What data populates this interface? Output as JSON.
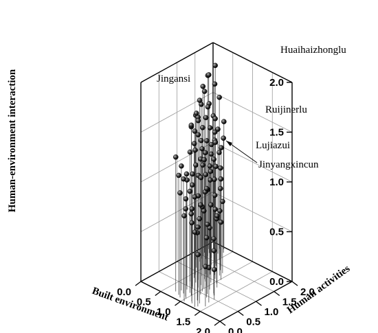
{
  "chart_data": {
    "type": "scatter3d",
    "title": "",
    "xlabel": "Built environment",
    "ylabel": "Human activities",
    "zlabel": "Human-environment interaction",
    "xlim": [
      0,
      2
    ],
    "ylim": [
      0,
      2
    ],
    "zlim": [
      0,
      2
    ],
    "x_ticks": [
      "0.0",
      "0.5",
      "1.0",
      "1.5",
      "2.0"
    ],
    "y_ticks": [
      "0.0",
      "0.5",
      "1.0",
      "1.5",
      "2.0"
    ],
    "z_ticks": [
      "0.0",
      "0.5",
      "1.0",
      "1.5",
      "2.0"
    ],
    "grid": true,
    "marker": "sphere with drop line",
    "annotations": [
      {
        "text": "Huaihaizhonglu",
        "x": 0.15,
        "y": 1.92,
        "z": 1.6
      },
      {
        "text": "Jingansi",
        "x": 0.6,
        "y": 0.93,
        "z": 1.55
      },
      {
        "text": "Ruijinerlu",
        "x": 0.37,
        "y": 1.55,
        "z": 1.14
      },
      {
        "text": "Lujiazui",
        "x": 0.46,
        "y": 1.21,
        "z": 1.02
      },
      {
        "text": "Jinyangxincun",
        "x": 0.46,
        "y": 1.21,
        "z": 1.02
      }
    ],
    "points": [
      {
        "x": 1.15,
        "y": 0.15,
        "z": 0.79
      },
      {
        "x": 1.05,
        "y": 0.05,
        "z": 0.86
      },
      {
        "x": 0.95,
        "y": 0.2,
        "z": 0.88
      },
      {
        "x": 1.0,
        "y": 0.3,
        "z": 0.82
      },
      {
        "x": 1.12,
        "y": 0.35,
        "z": 0.7
      },
      {
        "x": 1.2,
        "y": 0.25,
        "z": 0.68
      },
      {
        "x": 0.9,
        "y": 0.1,
        "z": 1.05
      },
      {
        "x": 0.85,
        "y": 0.25,
        "z": 1.15
      },
      {
        "x": 0.8,
        "y": 0.4,
        "z": 1.1
      },
      {
        "x": 0.95,
        "y": 0.45,
        "z": 0.95
      },
      {
        "x": 1.05,
        "y": 0.55,
        "z": 0.85
      },
      {
        "x": 1.25,
        "y": 0.45,
        "z": 0.6
      },
      {
        "x": 1.3,
        "y": 0.6,
        "z": 0.45
      },
      {
        "x": 1.1,
        "y": 0.7,
        "z": 0.62
      },
      {
        "x": 1.0,
        "y": 0.65,
        "z": 0.78
      },
      {
        "x": 0.9,
        "y": 0.6,
        "z": 0.92
      },
      {
        "x": 0.8,
        "y": 0.55,
        "z": 1.02
      },
      {
        "x": 0.7,
        "y": 0.5,
        "z": 1.12
      },
      {
        "x": 0.75,
        "y": 0.7,
        "z": 1.18
      },
      {
        "x": 0.65,
        "y": 0.65,
        "z": 1.3
      },
      {
        "x": 0.72,
        "y": 0.8,
        "z": 1.05
      },
      {
        "x": 0.85,
        "y": 0.85,
        "z": 0.9
      },
      {
        "x": 0.95,
        "y": 0.9,
        "z": 0.78
      },
      {
        "x": 1.05,
        "y": 0.95,
        "z": 0.65
      },
      {
        "x": 1.15,
        "y": 0.85,
        "z": 0.72
      },
      {
        "x": 0.62,
        "y": 0.8,
        "z": 1.35
      },
      {
        "x": 0.55,
        "y": 0.9,
        "z": 1.25
      },
      {
        "x": 0.6,
        "y": 1.0,
        "z": 1.15
      },
      {
        "x": 0.68,
        "y": 1.05,
        "z": 1.0
      },
      {
        "x": 0.78,
        "y": 1.0,
        "z": 0.88
      },
      {
        "x": 0.5,
        "y": 0.85,
        "z": 1.5
      },
      {
        "x": 0.45,
        "y": 1.0,
        "z": 1.4
      },
      {
        "x": 0.52,
        "y": 1.1,
        "z": 1.3
      },
      {
        "x": 0.58,
        "y": 1.15,
        "z": 1.18
      },
      {
        "x": 0.65,
        "y": 1.2,
        "z": 1.05
      },
      {
        "x": 0.72,
        "y": 1.25,
        "z": 0.92
      },
      {
        "x": 0.82,
        "y": 1.15,
        "z": 0.8
      },
      {
        "x": 0.4,
        "y": 1.1,
        "z": 1.55
      },
      {
        "x": 0.35,
        "y": 1.2,
        "z": 1.48
      },
      {
        "x": 0.42,
        "y": 1.25,
        "z": 1.38
      },
      {
        "x": 0.48,
        "y": 1.3,
        "z": 1.25
      },
      {
        "x": 0.55,
        "y": 1.35,
        "z": 1.12
      },
      {
        "x": 0.62,
        "y": 1.4,
        "z": 1.0
      },
      {
        "x": 0.7,
        "y": 1.45,
        "z": 0.88
      },
      {
        "x": 0.3,
        "y": 1.3,
        "z": 1.62
      },
      {
        "x": 0.25,
        "y": 1.4,
        "z": 1.55
      },
      {
        "x": 0.32,
        "y": 1.45,
        "z": 1.42
      },
      {
        "x": 0.38,
        "y": 1.5,
        "z": 1.32
      },
      {
        "x": 0.45,
        "y": 1.55,
        "z": 1.2
      },
      {
        "x": 0.52,
        "y": 1.6,
        "z": 1.08
      },
      {
        "x": 0.2,
        "y": 1.5,
        "z": 1.7
      },
      {
        "x": 0.15,
        "y": 1.6,
        "z": 1.62
      },
      {
        "x": 0.22,
        "y": 1.65,
        "z": 1.5
      },
      {
        "x": 0.28,
        "y": 1.7,
        "z": 1.38
      },
      {
        "x": 0.35,
        "y": 1.75,
        "z": 1.25
      },
      {
        "x": 0.12,
        "y": 1.75,
        "z": 1.75
      },
      {
        "x": 0.18,
        "y": 1.85,
        "z": 1.65
      },
      {
        "x": 0.25,
        "y": 1.9,
        "z": 1.52
      },
      {
        "x": 0.1,
        "y": 1.95,
        "z": 1.8
      },
      {
        "x": 0.05,
        "y": 1.8,
        "z": 1.72
      },
      {
        "x": 1.35,
        "y": 0.1,
        "z": 0.52
      },
      {
        "x": 1.45,
        "y": 0.2,
        "z": 0.4
      },
      {
        "x": 1.4,
        "y": 0.35,
        "z": 0.35
      },
      {
        "x": 1.2,
        "y": 0.1,
        "z": 0.95
      },
      {
        "x": 1.3,
        "y": 0.2,
        "z": 0.85
      },
      {
        "x": 0.98,
        "y": 0.75,
        "z": 0.98
      },
      {
        "x": 0.88,
        "y": 0.7,
        "z": 1.08
      },
      {
        "x": 0.78,
        "y": 0.9,
        "z": 1.2
      },
      {
        "x": 0.68,
        "y": 0.95,
        "z": 1.28
      },
      {
        "x": 0.58,
        "y": 0.95,
        "z": 1.4
      },
      {
        "x": 0.92,
        "y": 1.05,
        "z": 0.7
      },
      {
        "x": 1.02,
        "y": 1.1,
        "z": 0.58
      },
      {
        "x": 0.88,
        "y": 1.3,
        "z": 0.72
      },
      {
        "x": 0.78,
        "y": 1.35,
        "z": 0.82
      },
      {
        "x": 0.6,
        "y": 1.55,
        "z": 0.95
      },
      {
        "x": 0.48,
        "y": 1.7,
        "z": 1.1
      },
      {
        "x": 0.4,
        "y": 1.85,
        "z": 1.15
      },
      {
        "x": 0.32,
        "y": 1.95,
        "z": 1.28
      },
      {
        "x": 0.46,
        "y": 1.21,
        "z": 1.02
      },
      {
        "x": 0.37,
        "y": 1.55,
        "z": 1.14
      },
      {
        "x": 0.6,
        "y": 0.93,
        "z": 1.55
      },
      {
        "x": 1.1,
        "y": 0.45,
        "z": 0.9
      },
      {
        "x": 1.0,
        "y": 0.15,
        "z": 1.0
      },
      {
        "x": 0.92,
        "y": 0.35,
        "z": 1.02
      },
      {
        "x": 0.82,
        "y": 0.15,
        "z": 1.2
      },
      {
        "x": 0.75,
        "y": 0.3,
        "z": 1.25
      },
      {
        "x": 0.7,
        "y": 0.2,
        "z": 1.35
      },
      {
        "x": 1.25,
        "y": 0.65,
        "z": 0.55
      },
      {
        "x": 1.18,
        "y": 0.55,
        "z": 0.7
      },
      {
        "x": 0.66,
        "y": 1.3,
        "z": 1.1
      },
      {
        "x": 0.56,
        "y": 1.45,
        "z": 1.22
      },
      {
        "x": 0.5,
        "y": 1.5,
        "z": 1.3
      },
      {
        "x": 0.42,
        "y": 1.6,
        "z": 1.4
      },
      {
        "x": 0.28,
        "y": 1.55,
        "z": 1.5
      },
      {
        "x": 0.2,
        "y": 1.3,
        "z": 1.45
      },
      {
        "x": 0.18,
        "y": 1.2,
        "z": 1.35
      },
      {
        "x": 0.85,
        "y": 0.5,
        "z": 1.15
      },
      {
        "x": 0.9,
        "y": 1.2,
        "z": 0.65
      },
      {
        "x": 0.75,
        "y": 1.1,
        "z": 0.95
      },
      {
        "x": 0.62,
        "y": 1.25,
        "z": 0.98
      },
      {
        "x": 1.4,
        "y": 0.5,
        "z": 0.3
      },
      {
        "x": 1.32,
        "y": 0.05,
        "z": 0.75
      }
    ]
  }
}
